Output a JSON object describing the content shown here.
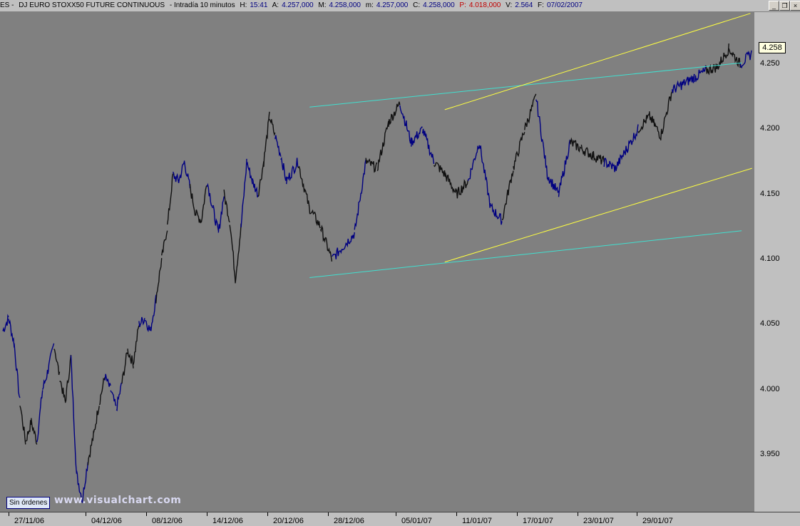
{
  "header": {
    "symbol": "ES -",
    "name": "DJ EURO STOXX50 FUTURE CONTINUOUS",
    "interval": "- Intradía 10 minutos",
    "h_label": "H:",
    "h_value": "15:41",
    "a_label": "A:",
    "a_value": "4.257,000",
    "m_label": "M:",
    "m_value": "4.258,000",
    "mn_label": "m:",
    "mn_value": "4.257,000",
    "c_label": "C:",
    "c_value": "4.258,000",
    "p_label": "P:",
    "p_value": "4.018,000",
    "v_label": "V:",
    "v_value": "2.564",
    "f_label": "F:",
    "f_value": "07/02/2007"
  },
  "window_buttons": {
    "minimize": "_",
    "restore": "❐",
    "close": "×"
  },
  "price_tag": "4.258",
  "orders_button": "Sin órdenes",
  "watermark": "www.visualchart.com",
  "chart_data": {
    "type": "line",
    "title": "DJ EURO STOXX50 FUTURE CONTINUOUS",
    "x_tick_labels": [
      "27/11/06",
      "04/12/06",
      "08/12/06",
      "14/12/06",
      "20/12/06",
      "28/12/06",
      "05/01/07",
      "11/01/07",
      "17/01/07",
      "23/01/07",
      "29/01/07"
    ],
    "y_tick_labels": [
      "4.250",
      "4.200",
      "4.150",
      "4.100",
      "4.050",
      "4.000",
      "3.950"
    ],
    "ylim": [
      3905,
      4290
    ],
    "last_value": 4258,
    "series": [
      {
        "color": "#000080",
        "x": [
          0,
          2,
          4,
          6,
          8,
          10,
          12,
          14,
          16,
          18,
          20,
          22,
          24,
          26,
          28,
          30,
          32,
          34,
          36,
          38,
          40,
          42,
          44,
          46,
          48,
          50,
          52,
          54,
          56,
          58,
          60,
          62,
          64,
          66,
          68,
          70,
          72,
          74,
          76,
          78,
          80,
          82,
          84,
          86,
          88,
          90,
          92,
          94,
          96,
          98,
          100
        ],
        "values": [
          4045,
          4055,
          4035,
          3990,
          3960,
          3975,
          3960,
          4000,
          4015,
          4035,
          4010,
          3990,
          4025,
          3935,
          3915,
          3945,
          3965,
          3990,
          4010,
          4000,
          3985,
          4005,
          4030,
          4020,
          4050,
          4055,
          4045,
          4070,
          4100,
          4125,
          4165,
          4160,
          4175,
          4155,
          4135,
          4130,
          4160,
          4140,
          4120,
          4150,
          4130,
          4085,
          4125,
          4175,
          4160,
          4150,
          4175,
          4210,
          4195,
          4180,
          4160
        ]
      }
    ],
    "continuation": {
      "x": [
        100,
        104,
        108,
        112,
        116,
        120,
        124,
        128,
        132,
        136,
        140,
        144,
        148,
        152,
        156,
        160,
        164,
        168,
        172,
        176,
        180,
        184,
        188,
        192,
        196,
        200,
        204,
        208
      ],
      "values": [
        4160,
        4175,
        4140,
        4125,
        4100,
        4110,
        4120,
        4175,
        4170,
        4205,
        4220,
        4190,
        4200,
        4175,
        4165,
        4150,
        4160,
        4190,
        4140,
        4130,
        4170,
        4200,
        4225,
        4165,
        4150,
        4190,
        4185,
        4180
      ]
    },
    "continuation2": {
      "x": [
        208,
        212,
        216,
        220,
        224,
        228,
        232,
        236,
        240,
        244,
        248,
        252,
        256,
        260,
        264
      ],
      "values": [
        4180,
        4175,
        4170,
        4185,
        4200,
        4210,
        4195,
        4230,
        4235,
        4240,
        4245,
        4248,
        4262,
        4250,
        4258
      ]
    },
    "trendlines": [
      {
        "color": "#40e0d0",
        "from": [
          0.387,
          4217
        ],
        "to": [
          0.927,
          4251
        ]
      },
      {
        "color": "#40e0d0",
        "from": [
          0.387,
          4086
        ],
        "to": [
          0.927,
          4122
        ]
      },
      {
        "color": "#ffff40",
        "from": [
          0.556,
          4215
        ],
        "to": [
          0.938,
          4289
        ]
      },
      {
        "color": "#ffff40",
        "from": [
          0.556,
          4098
        ],
        "to": [
          0.94,
          4170
        ]
      }
    ]
  }
}
